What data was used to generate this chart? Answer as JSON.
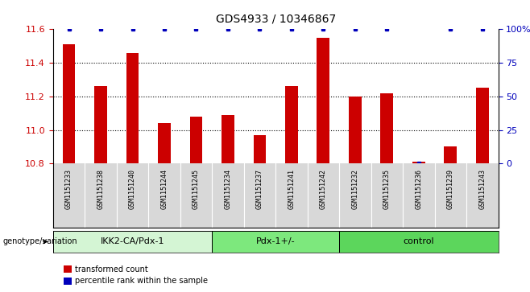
{
  "title": "GDS4933 / 10346867",
  "samples": [
    "GSM1151233",
    "GSM1151238",
    "GSM1151240",
    "GSM1151244",
    "GSM1151245",
    "GSM1151234",
    "GSM1151237",
    "GSM1151241",
    "GSM1151242",
    "GSM1151232",
    "GSM1151235",
    "GSM1151236",
    "GSM1151239",
    "GSM1151243"
  ],
  "red_values": [
    11.51,
    11.26,
    11.46,
    11.04,
    11.08,
    11.09,
    10.97,
    11.26,
    11.55,
    11.2,
    11.22,
    10.81,
    10.9,
    11.25
  ],
  "blue_values": [
    100,
    100,
    100,
    100,
    100,
    100,
    100,
    100,
    100,
    100,
    100,
    0,
    100,
    100
  ],
  "ylim_left": [
    10.8,
    11.6
  ],
  "ylim_right": [
    0,
    100
  ],
  "groups": [
    {
      "label": "IKK2-CA/Pdx-1",
      "start": 0,
      "end": 5,
      "color": "#d4f5d4"
    },
    {
      "label": "Pdx-1+/-",
      "start": 5,
      "end": 9,
      "color": "#7de87d"
    },
    {
      "label": "control",
      "start": 9,
      "end": 14,
      "color": "#5cd65c"
    }
  ],
  "yticks_left": [
    10.8,
    11.0,
    11.2,
    11.4,
    11.6
  ],
  "yticks_right": [
    0,
    25,
    50,
    75,
    100
  ],
  "bar_color": "#cc0000",
  "dot_color": "#0000bb",
  "background_color": "#ffffff",
  "tick_label_color_left": "#cc0000",
  "tick_label_color_right": "#0000bb",
  "legend_red": "transformed count",
  "legend_blue": "percentile rank within the sample",
  "genotype_label": "genotype/variation",
  "sample_area_color": "#d8d8d8",
  "bar_width": 0.4
}
